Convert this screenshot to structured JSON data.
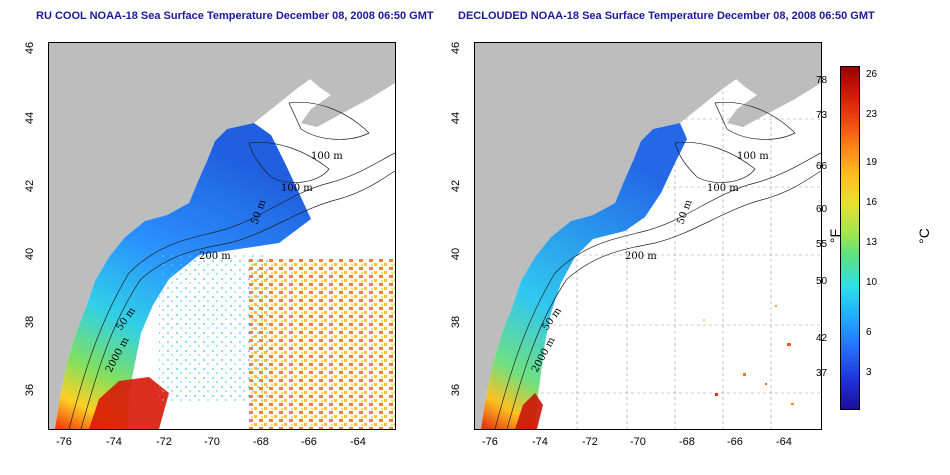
{
  "left_panel": {
    "title": "RU COOL NOAA-18 Sea Surface Temperature December 08, 2008 06:50 GMT",
    "contours": [
      "100 m",
      "100 m",
      "50 m",
      "200 m",
      "50 m",
      "2000 m"
    ]
  },
  "right_panel": {
    "title": "DECLOUDED NOAA-18 Sea Surface Temperature December 08, 2008 06:50 GMT",
    "contours": [
      "100 m",
      "100 m",
      "50 m",
      "200 m",
      "50 m",
      "2000 m"
    ]
  },
  "axes": {
    "x_ticks": [
      "-76",
      "-74",
      "-72",
      "-70",
      "-68",
      "-66",
      "-64"
    ],
    "y_ticks": [
      "36",
      "38",
      "40",
      "42",
      "44",
      "46"
    ]
  },
  "colorbar": {
    "fahrenheit_ticks": [
      "78",
      "73",
      "66",
      "60",
      "55",
      "50",
      "42",
      "37"
    ],
    "celsius_ticks": [
      "26",
      "23",
      "19",
      "16",
      "13",
      "10",
      "6",
      "3"
    ],
    "fahrenheit_unit": "°F",
    "celsius_unit": "°C"
  },
  "colors": {
    "title": "#1a1a9c",
    "land": "#bdbdbd",
    "grid": "#9a9a9a"
  }
}
